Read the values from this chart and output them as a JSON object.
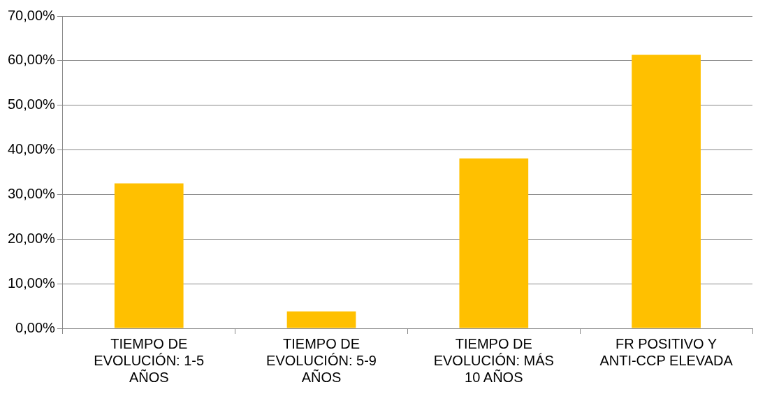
{
  "chart_data": {
    "type": "bar",
    "categories": [
      "TIEMPO DE EVOLUCIÓN: 1-5 AÑOS",
      "TIEMPO DE EVOLUCIÓN: 5-9 AÑOS",
      "TIEMPO DE EVOLUCIÓN: MÁS 10 AÑOS",
      "FR POSITIVO Y ANTI-CCP ELEVADA"
    ],
    "values": [
      32.5,
      3.8,
      38.1,
      61.3
    ],
    "color": "#ffc000",
    "ylim": [
      0,
      70
    ],
    "yticks": [
      {
        "value": 0,
        "label": "0,00%"
      },
      {
        "value": 10,
        "label": "10,00%"
      },
      {
        "value": 20,
        "label": "20,00%"
      },
      {
        "value": 30,
        "label": "30,00%"
      },
      {
        "value": 40,
        "label": "40,00%"
      },
      {
        "value": 50,
        "label": "50,00%"
      },
      {
        "value": 60,
        "label": "60,00%"
      },
      {
        "value": 70,
        "label": "70,00%"
      }
    ],
    "grid": "y",
    "legend": false
  }
}
